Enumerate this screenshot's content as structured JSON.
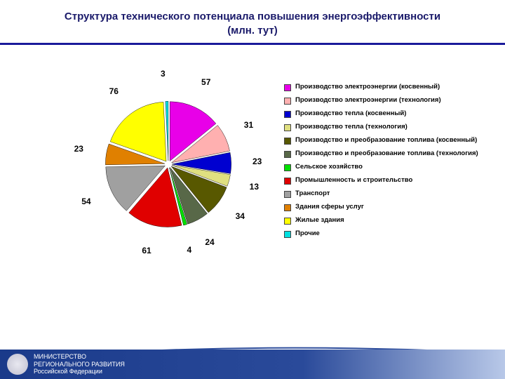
{
  "title_line1": "Структура технического потенциала повышения энергоэффективности",
  "title_line2": "(млн. тут)",
  "chart": {
    "type": "pie",
    "background_color": "#ffffff",
    "explode": 0.06,
    "slice_label_fontsize": 12,
    "slice_label_fontweight": "bold",
    "slices": [
      {
        "label": "Производство электроэнергии (косвенный)",
        "value": 57,
        "color": "#e800e8"
      },
      {
        "label": "Производство электроэнергии (технология)",
        "value": 31,
        "color": "#ffb0b0"
      },
      {
        "label": "Производство тепла (косвенный)",
        "value": 23,
        "color": "#0000d0"
      },
      {
        "label": "Производство тепла (технология)",
        "value": 13,
        "color": "#e0e080"
      },
      {
        "label": "Производство и преобразование топлива (косвенный)",
        "value": 34,
        "color": "#585800"
      },
      {
        "label": "Производство и преобразование топлива (технология)",
        "value": 24,
        "color": "#586848"
      },
      {
        "label": "Сельское хозяйство",
        "value": 4,
        "color": "#00e000"
      },
      {
        "label": "Промышленность и строительство",
        "value": 61,
        "color": "#e00000"
      },
      {
        "label": "Транспорт",
        "value": 54,
        "color": "#a0a0a0"
      },
      {
        "label": "Здания сферы услуг",
        "value": 23,
        "color": "#e08000"
      },
      {
        "label": "Жилые здания",
        "value": 76,
        "color": "#ffff00"
      },
      {
        "label": "Прочие",
        "value": 3,
        "color": "#00e0e0"
      }
    ],
    "legend_fontsize": 9.5,
    "legend_swatch_border": "#444444",
    "start_angle": -90
  },
  "footer": {
    "line1": "МИНИСТЕРСТВО",
    "line2": "РЕГИОНАЛЬНОГО РАЗВИТИЯ",
    "line3": "Российской Федерации",
    "bg_from": "#1a3a8a",
    "bg_to": "#b8c8e8",
    "text_color": "#ffffff"
  }
}
